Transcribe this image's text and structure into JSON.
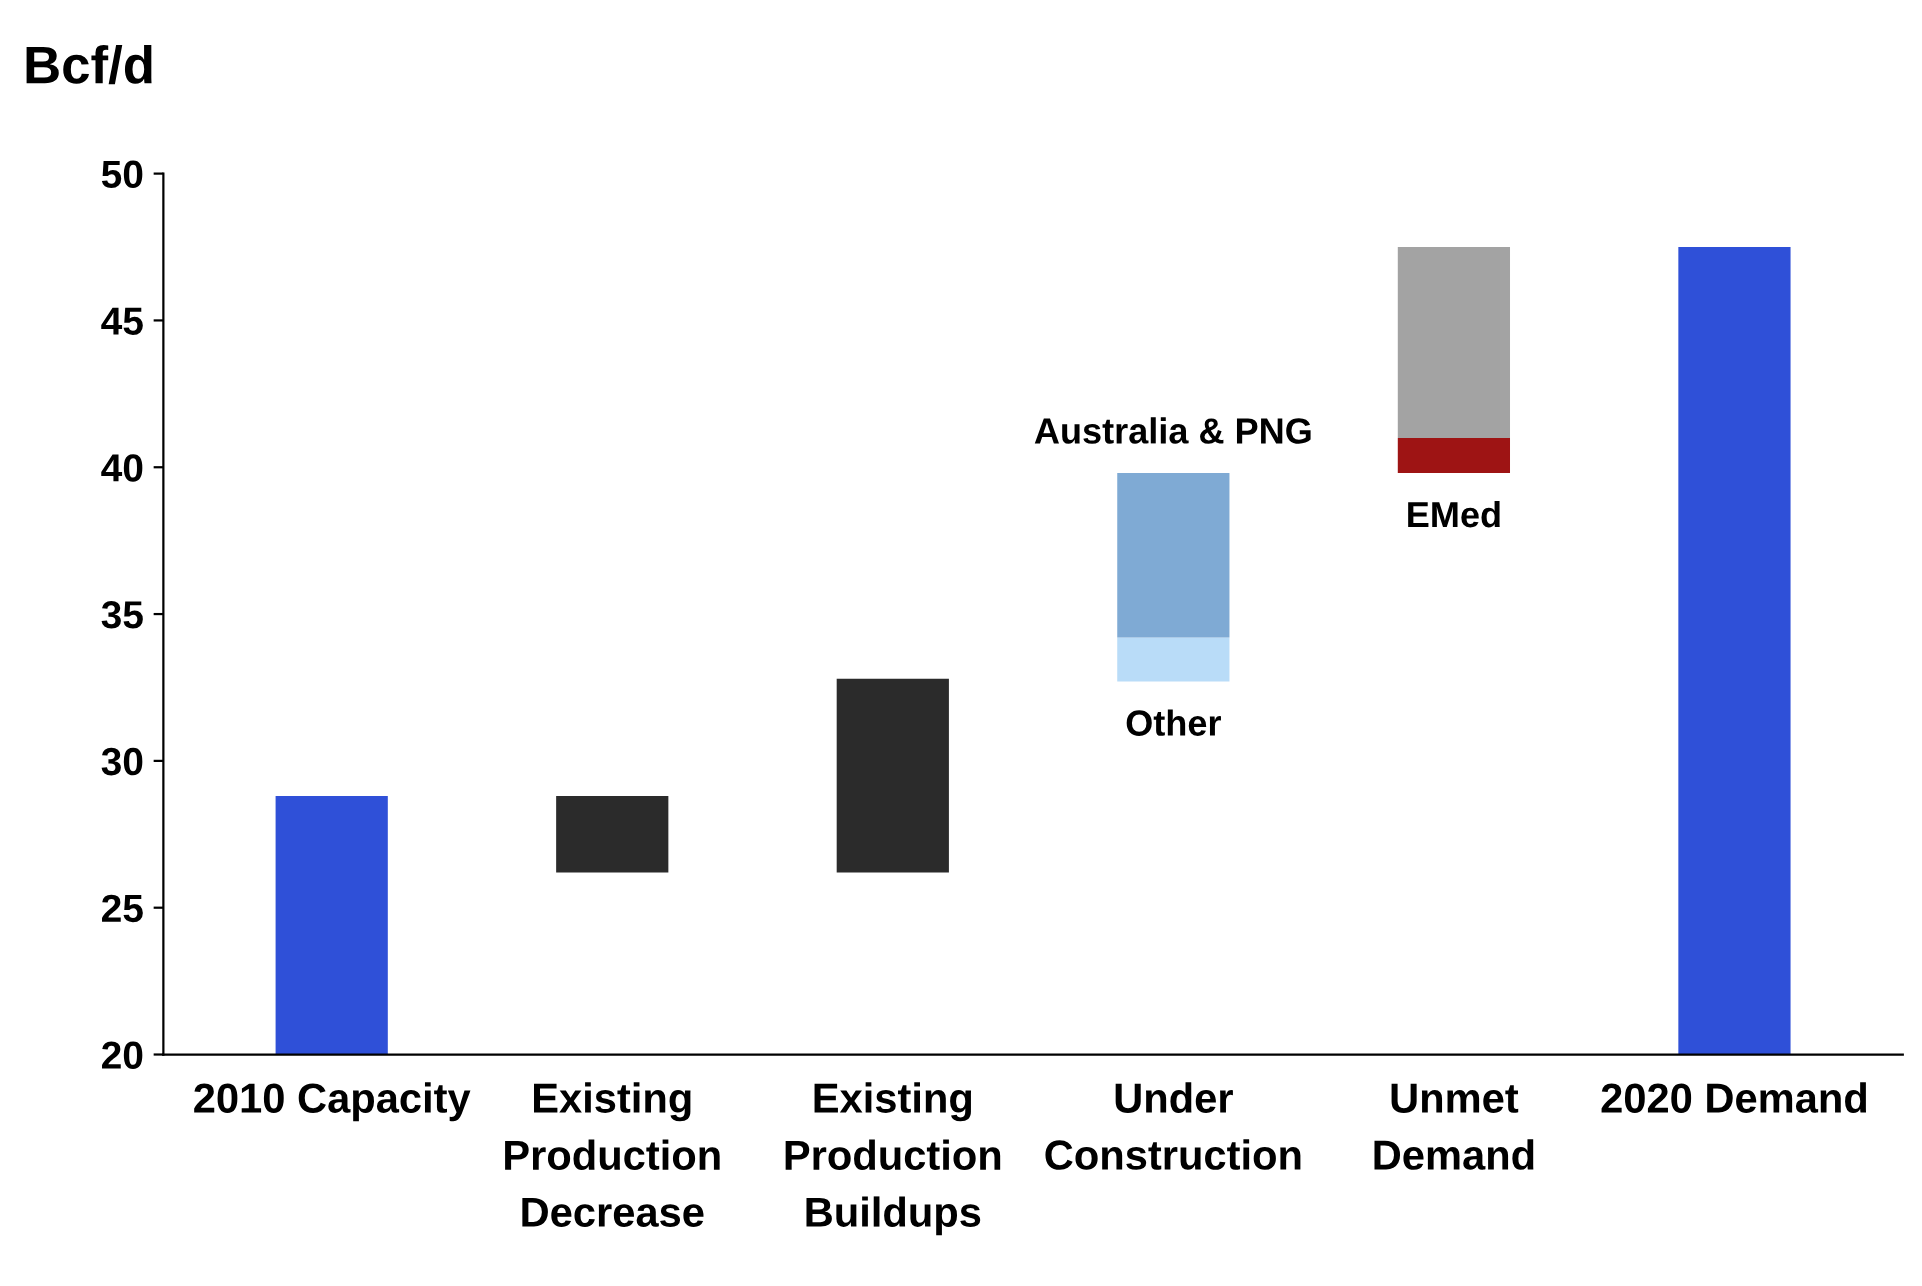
{
  "chart_data": {
    "type": "bar",
    "ylabel": "Bcf/d",
    "categories": [
      "2010 Capacity",
      "Existing\nProduction\nDecrease",
      "Existing\nProduction\nBuildups",
      "Under\nConstruction",
      "Unmet\nDemand",
      "2020 Demand"
    ],
    "series": [
      {
        "colors": [
          "#2f50d8",
          "#2b2b2b",
          "#2b2b2b",
          null,
          null,
          "#2f50d8"
        ],
        "base": [
          20,
          26.2,
          26.2,
          null,
          null,
          20
        ],
        "values": [
          8.8,
          2.6,
          6.6,
          null,
          null,
          27.5
        ]
      },
      {
        "name": "Other",
        "color": "#b9dcf8",
        "base": [
          null,
          null,
          null,
          32.7,
          null,
          null
        ],
        "values": [
          null,
          null,
          null,
          1.5,
          null,
          null
        ]
      },
      {
        "name": "Australia & PNG",
        "color": "#7faad4",
        "base": [
          null,
          null,
          null,
          34.2,
          null,
          null
        ],
        "values": [
          null,
          null,
          null,
          5.6,
          null,
          null
        ]
      },
      {
        "name": "EMed",
        "color": "#9e1414",
        "base": [
          null,
          null,
          null,
          null,
          39.8,
          null
        ],
        "values": [
          null,
          null,
          null,
          null,
          1.2,
          null
        ]
      },
      {
        "color": "#a3a3a3",
        "base": [
          null,
          null,
          null,
          null,
          41.0,
          null
        ],
        "values": [
          null,
          null,
          null,
          null,
          6.5,
          null
        ]
      }
    ],
    "ylim": [
      20,
      50
    ],
    "yticks": [
      20,
      25,
      30,
      35,
      40,
      45,
      50
    ],
    "grid": false,
    "legend": false
  }
}
